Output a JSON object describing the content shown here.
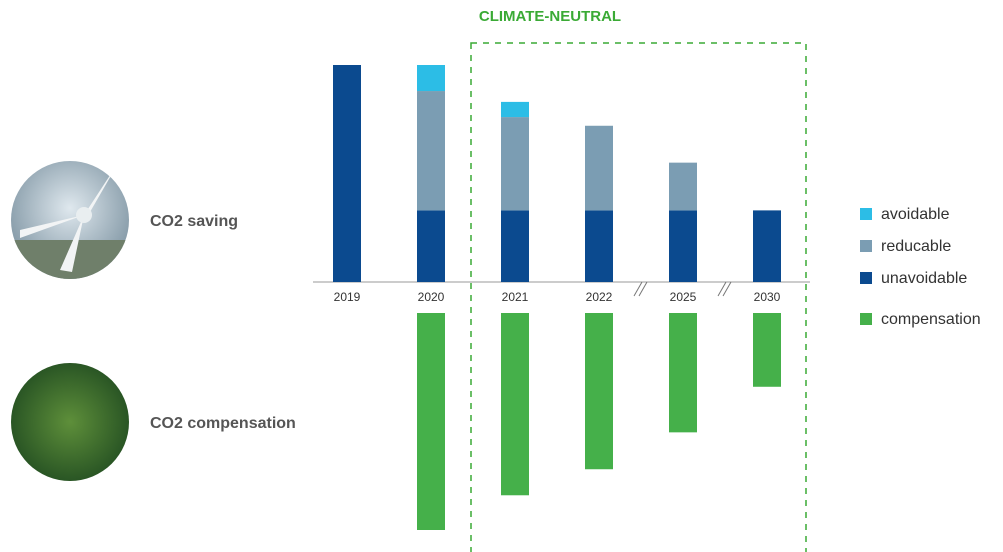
{
  "chart_data": {
    "type": "bar",
    "stacked": true,
    "annotation": "CLIMATE-NEUTRAL",
    "row_labels": [
      "CO2 saving",
      "CO2 compensation"
    ],
    "categories": [
      "2019",
      "2020",
      "2021",
      "2022",
      "2025",
      "2030"
    ],
    "series": [
      {
        "name": "unavoidable",
        "color": "#0b4a8f",
        "values": [
          100,
          33,
          33,
          33,
          33,
          33
        ]
      },
      {
        "name": "reducable",
        "color": "#7b9db3",
        "values": [
          0,
          55,
          43,
          39,
          22,
          0
        ]
      },
      {
        "name": "avoidable",
        "color": "#2cbde6",
        "values": [
          0,
          12,
          7,
          0,
          0,
          0
        ]
      },
      {
        "name": "compensation",
        "color": "#45b04a",
        "values": [
          0,
          -100,
          -84,
          -72,
          -55,
          -34
        ]
      }
    ]
  }
}
